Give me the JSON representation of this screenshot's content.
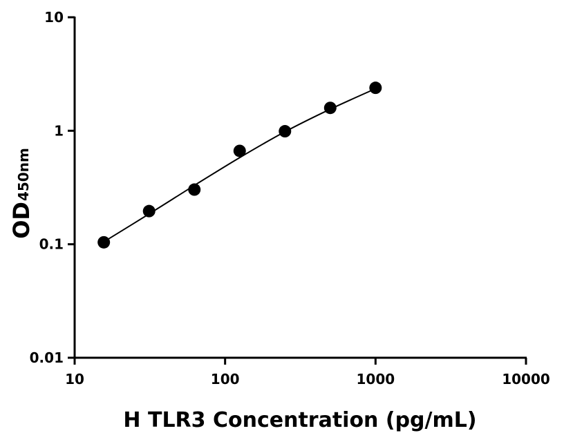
{
  "chart_data": {
    "type": "scatter",
    "x_label": "H TLR3 Concentration (pg/mL)",
    "y_label": "OD",
    "y_label_subscript": "450nm",
    "log_x": true,
    "log_y": true,
    "xlim": [
      10,
      10000
    ],
    "xticks": [
      10,
      100,
      1000,
      10000
    ],
    "ylim": [
      0.01,
      10
    ],
    "yticks": [
      0.01,
      0.1,
      1,
      10
    ],
    "series": [
      {
        "kind": "points",
        "color": "#000000",
        "x": [
          15.625,
          31.25,
          62.5,
          125,
          250,
          500,
          1000
        ],
        "values": [
          0.104,
          0.196,
          0.303,
          0.665,
          0.99,
          1.59,
          2.39
        ]
      },
      {
        "kind": "curve",
        "color": "#000000",
        "x": [
          15.625,
          31.25,
          62.5,
          125,
          250,
          500,
          1000
        ],
        "values": [
          0.105,
          0.185,
          0.33,
          0.58,
          0.98,
          1.55,
          2.35
        ]
      }
    ]
  }
}
